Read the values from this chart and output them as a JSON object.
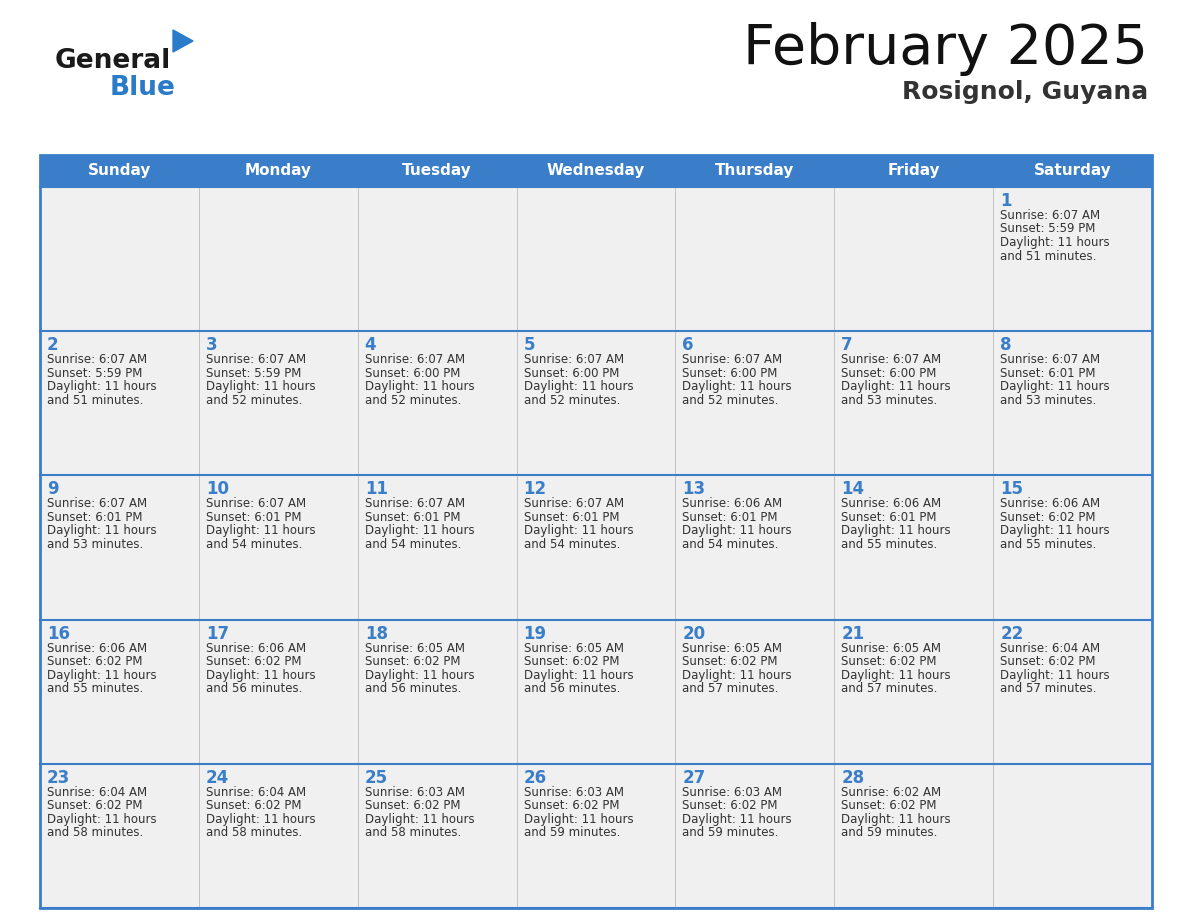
{
  "title": "February 2025",
  "subtitle": "Rosignol, Guyana",
  "days_of_week": [
    "Sunday",
    "Monday",
    "Tuesday",
    "Wednesday",
    "Thursday",
    "Friday",
    "Saturday"
  ],
  "header_bg_color": "#3A7DC9",
  "header_text_color": "#FFFFFF",
  "cell_bg_color": "#F0F0F0",
  "border_color": "#3A7DC9",
  "row_border_color": "#3A7DC9",
  "day_num_color": "#3A7DC9",
  "info_text_color": "#333333",
  "title_color": "#111111",
  "subtitle_color": "#333333",
  "logo_general_color": "#1A1A1A",
  "logo_blue_color": "#2A7BC8",
  "logo_triangle_color": "#2A7BC8",
  "calendar_data": [
    [
      null,
      null,
      null,
      null,
      null,
      null,
      {
        "day": 1,
        "sunrise": "6:07 AM",
        "sunset": "5:59 PM",
        "daylight": "11 hours and 51 minutes."
      }
    ],
    [
      {
        "day": 2,
        "sunrise": "6:07 AM",
        "sunset": "5:59 PM",
        "daylight": "11 hours and 51 minutes."
      },
      {
        "day": 3,
        "sunrise": "6:07 AM",
        "sunset": "5:59 PM",
        "daylight": "11 hours and 52 minutes."
      },
      {
        "day": 4,
        "sunrise": "6:07 AM",
        "sunset": "6:00 PM",
        "daylight": "11 hours and 52 minutes."
      },
      {
        "day": 5,
        "sunrise": "6:07 AM",
        "sunset": "6:00 PM",
        "daylight": "11 hours and 52 minutes."
      },
      {
        "day": 6,
        "sunrise": "6:07 AM",
        "sunset": "6:00 PM",
        "daylight": "11 hours and 52 minutes."
      },
      {
        "day": 7,
        "sunrise": "6:07 AM",
        "sunset": "6:00 PM",
        "daylight": "11 hours and 53 minutes."
      },
      {
        "day": 8,
        "sunrise": "6:07 AM",
        "sunset": "6:01 PM",
        "daylight": "11 hours and 53 minutes."
      }
    ],
    [
      {
        "day": 9,
        "sunrise": "6:07 AM",
        "sunset": "6:01 PM",
        "daylight": "11 hours and 53 minutes."
      },
      {
        "day": 10,
        "sunrise": "6:07 AM",
        "sunset": "6:01 PM",
        "daylight": "11 hours and 54 minutes."
      },
      {
        "day": 11,
        "sunrise": "6:07 AM",
        "sunset": "6:01 PM",
        "daylight": "11 hours and 54 minutes."
      },
      {
        "day": 12,
        "sunrise": "6:07 AM",
        "sunset": "6:01 PM",
        "daylight": "11 hours and 54 minutes."
      },
      {
        "day": 13,
        "sunrise": "6:06 AM",
        "sunset": "6:01 PM",
        "daylight": "11 hours and 54 minutes."
      },
      {
        "day": 14,
        "sunrise": "6:06 AM",
        "sunset": "6:01 PM",
        "daylight": "11 hours and 55 minutes."
      },
      {
        "day": 15,
        "sunrise": "6:06 AM",
        "sunset": "6:02 PM",
        "daylight": "11 hours and 55 minutes."
      }
    ],
    [
      {
        "day": 16,
        "sunrise": "6:06 AM",
        "sunset": "6:02 PM",
        "daylight": "11 hours and 55 minutes."
      },
      {
        "day": 17,
        "sunrise": "6:06 AM",
        "sunset": "6:02 PM",
        "daylight": "11 hours and 56 minutes."
      },
      {
        "day": 18,
        "sunrise": "6:05 AM",
        "sunset": "6:02 PM",
        "daylight": "11 hours and 56 minutes."
      },
      {
        "day": 19,
        "sunrise": "6:05 AM",
        "sunset": "6:02 PM",
        "daylight": "11 hours and 56 minutes."
      },
      {
        "day": 20,
        "sunrise": "6:05 AM",
        "sunset": "6:02 PM",
        "daylight": "11 hours and 57 minutes."
      },
      {
        "day": 21,
        "sunrise": "6:05 AM",
        "sunset": "6:02 PM",
        "daylight": "11 hours and 57 minutes."
      },
      {
        "day": 22,
        "sunrise": "6:04 AM",
        "sunset": "6:02 PM",
        "daylight": "11 hours and 57 minutes."
      }
    ],
    [
      {
        "day": 23,
        "sunrise": "6:04 AM",
        "sunset": "6:02 PM",
        "daylight": "11 hours and 58 minutes."
      },
      {
        "day": 24,
        "sunrise": "6:04 AM",
        "sunset": "6:02 PM",
        "daylight": "11 hours and 58 minutes."
      },
      {
        "day": 25,
        "sunrise": "6:03 AM",
        "sunset": "6:02 PM",
        "daylight": "11 hours and 58 minutes."
      },
      {
        "day": 26,
        "sunrise": "6:03 AM",
        "sunset": "6:02 PM",
        "daylight": "11 hours and 59 minutes."
      },
      {
        "day": 27,
        "sunrise": "6:03 AM",
        "sunset": "6:02 PM",
        "daylight": "11 hours and 59 minutes."
      },
      {
        "day": 28,
        "sunrise": "6:02 AM",
        "sunset": "6:02 PM",
        "daylight": "11 hours and 59 minutes."
      },
      null
    ]
  ]
}
